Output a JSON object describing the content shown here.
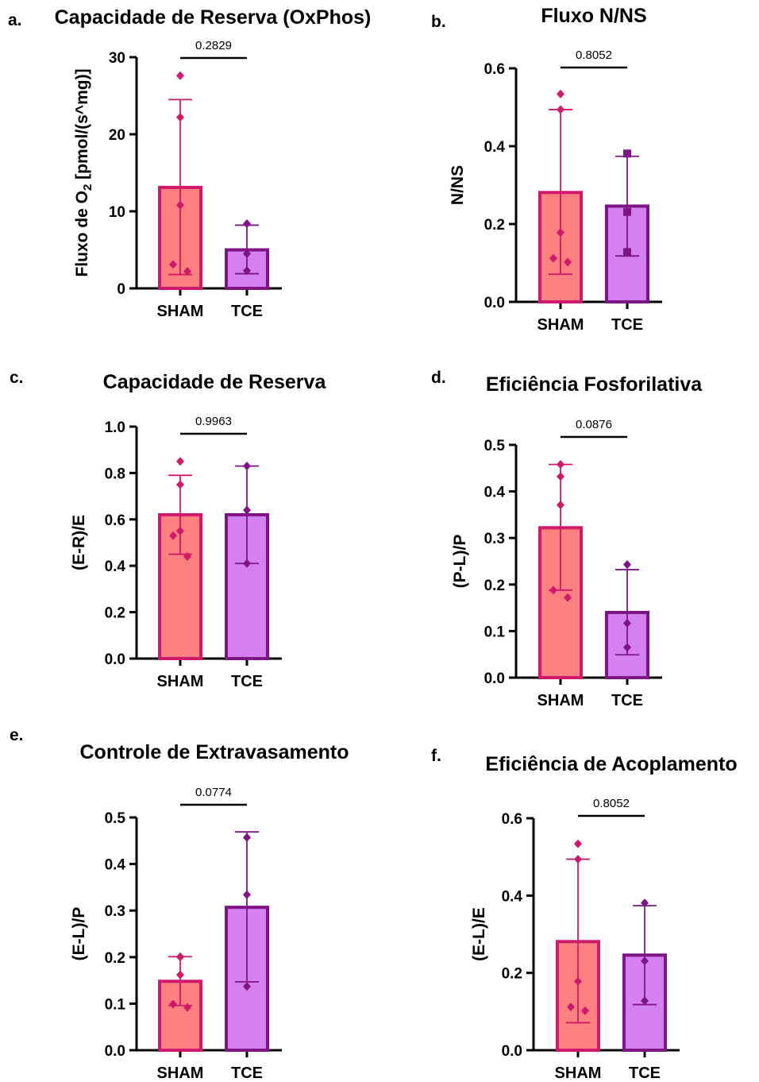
{
  "chart_data": [
    {
      "letter": "a.",
      "title": "Capacidade de Reserva (OxPhos)",
      "ylabel": "Fluxo de O2 [pmol/(s^mg)]",
      "type": "bar",
      "ylim": [
        0,
        30
      ],
      "yticks": [
        0,
        10,
        20,
        30
      ],
      "tick_labels": [
        "0",
        "10",
        "20",
        "30"
      ],
      "categories": [
        "SHAM",
        "TCE"
      ],
      "values": [
        13.1,
        5.0
      ],
      "error": [
        [
          1.8,
          24.5
        ],
        [
          1.9,
          8.2
        ]
      ],
      "points": [
        [
          27.6,
          22.2,
          10.8,
          3.1,
          2.2
        ],
        [
          8.4,
          4.5,
          2.3
        ]
      ],
      "pvalue": "0.2829",
      "markers": [
        "diamond",
        "diamond"
      ]
    },
    {
      "letter": "b.",
      "title": "Fluxo N/NS",
      "ylabel": "N/NS",
      "type": "bar",
      "ylim": [
        0,
        0.6
      ],
      "yticks": [
        0,
        0.2,
        0.4,
        0.6
      ],
      "tick_labels": [
        "0.0",
        "0.2",
        "0.4",
        "0.6"
      ],
      "categories": [
        "SHAM",
        "TCE"
      ],
      "values": [
        0.281,
        0.246
      ],
      "error": [
        [
          0.071,
          0.494
        ],
        [
          0.118,
          0.374
        ]
      ],
      "points": [
        [
          0.534,
          0.494,
          0.178,
          0.112,
          0.102
        ],
        [
          0.381,
          0.231,
          0.128
        ]
      ],
      "pvalue": "0.8052",
      "markers": [
        "diamond",
        "square"
      ]
    },
    {
      "letter": "c.",
      "title": "Capacidade de Reserva",
      "ylabel": "(E-R)/E",
      "type": "bar",
      "ylim": [
        0,
        1.0
      ],
      "yticks": [
        0,
        0.2,
        0.4,
        0.6,
        0.8,
        1.0
      ],
      "tick_labels": [
        "0.0",
        "0.2",
        "0.4",
        "0.6",
        "0.8",
        "1.0"
      ],
      "categories": [
        "SHAM",
        "TCE"
      ],
      "values": [
        0.62,
        0.62
      ],
      "error": [
        [
          0.45,
          0.79
        ],
        [
          0.41,
          0.83
        ]
      ],
      "points": [
        [
          0.85,
          0.75,
          0.55,
          0.53,
          0.44
        ],
        [
          0.83,
          0.64,
          0.41
        ]
      ],
      "pvalue": "0.9963",
      "markers": [
        "diamond",
        "diamond"
      ]
    },
    {
      "letter": "d.",
      "title": "Eficiência Fosforilativa",
      "ylabel": "(P-L)/P",
      "type": "bar",
      "ylim": [
        0,
        0.5
      ],
      "yticks": [
        0,
        0.1,
        0.2,
        0.3,
        0.4,
        0.5
      ],
      "tick_labels": [
        "0.0",
        "0.1",
        "0.2",
        "0.3",
        "0.4",
        "0.5"
      ],
      "categories": [
        "SHAM",
        "TCE"
      ],
      "values": [
        0.322,
        0.14
      ],
      "error": [
        [
          0.188,
          0.458
        ],
        [
          0.049,
          0.232
        ]
      ],
      "points": [
        [
          0.458,
          0.432,
          0.371,
          0.188,
          0.172
        ],
        [
          0.243,
          0.117,
          0.065
        ]
      ],
      "pvalue": "0.0876",
      "markers": [
        "diamond",
        "diamond"
      ]
    },
    {
      "letter": "e.",
      "title": "Controle de Extravasamento",
      "ylabel": "(E-L)/P",
      "type": "bar",
      "ylim": [
        0,
        0.5
      ],
      "yticks": [
        0,
        0.1,
        0.2,
        0.3,
        0.4,
        0.5
      ],
      "tick_labels": [
        "0.0",
        "0.1",
        "0.2",
        "0.3",
        "0.4",
        "0.5"
      ],
      "categories": [
        "SHAM",
        "TCE"
      ],
      "values": [
        0.148,
        0.307
      ],
      "error": [
        [
          0.096,
          0.201
        ],
        [
          0.147,
          0.469
        ]
      ],
      "points": [
        [
          0.201,
          0.2,
          0.162,
          0.099,
          0.092
        ],
        [
          0.457,
          0.334,
          0.137
        ]
      ],
      "pvalue": "0.0774",
      "markers": [
        "diamond",
        "diamond"
      ]
    },
    {
      "letter": "f.",
      "title": "Eficiência de Acoplamento",
      "ylabel": "(E-L)/E",
      "type": "bar",
      "ylim": [
        0,
        0.6
      ],
      "yticks": [
        0,
        0.2,
        0.4,
        0.6
      ],
      "tick_labels": [
        "0.0",
        "0.2",
        "0.4",
        "0.6"
      ],
      "categories": [
        "SHAM",
        "TCE"
      ],
      "values": [
        0.281,
        0.246
      ],
      "error": [
        [
          0.071,
          0.494
        ],
        [
          0.118,
          0.374
        ]
      ],
      "points": [
        [
          0.534,
          0.494,
          0.178,
          0.112,
          0.102
        ],
        [
          0.381,
          0.231,
          0.128
        ]
      ],
      "pvalue": "0.8052",
      "markers": [
        "diamond",
        "diamond"
      ]
    }
  ],
  "colors": {
    "sham_fill": "#ff8080",
    "sham_stroke": "#d0196b",
    "tce_fill": "#d580f0",
    "tce_stroke": "#7d1585"
  }
}
